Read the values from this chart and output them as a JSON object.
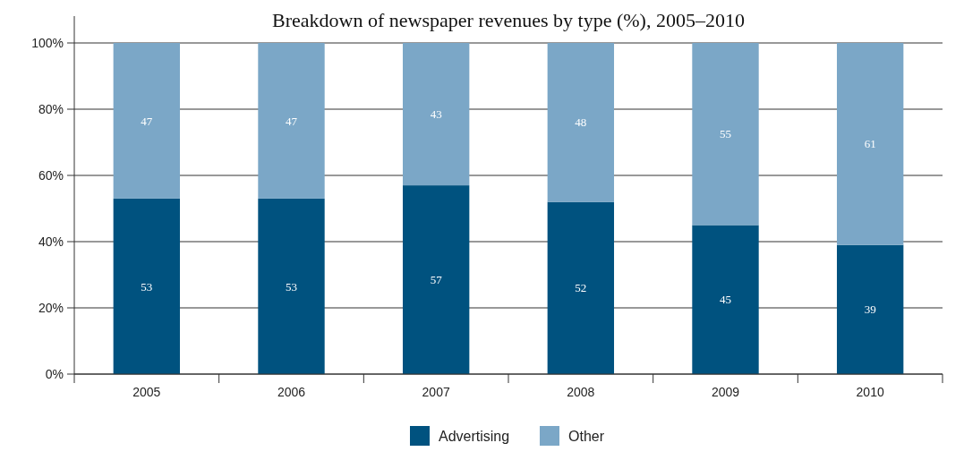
{
  "chart_data": {
    "type": "bar",
    "title": "Breakdown of newspaper revenues by type (%), 2005–2010",
    "categories": [
      "2005",
      "2006",
      "2007",
      "2008",
      "2009",
      "2010"
    ],
    "series": [
      {
        "name": "Advertising",
        "color": "#00527f",
        "values": [
          53,
          53,
          57,
          52,
          45,
          39
        ]
      },
      {
        "name": "Other",
        "color": "#7ba7c7",
        "values": [
          47,
          47,
          43,
          48,
          55,
          61
        ]
      }
    ],
    "stacked": true,
    "data_labels": true,
    "ylim": [
      0,
      100
    ],
    "yticks": [
      {
        "value": 0,
        "label": "0%"
      },
      {
        "value": 20,
        "label": "20%"
      },
      {
        "value": 40,
        "label": "40%"
      },
      {
        "value": 60,
        "label": "60%"
      },
      {
        "value": 80,
        "label": "80%"
      },
      {
        "value": 100,
        "label": "100%"
      }
    ],
    "grid": "y",
    "legend": "bottom"
  }
}
